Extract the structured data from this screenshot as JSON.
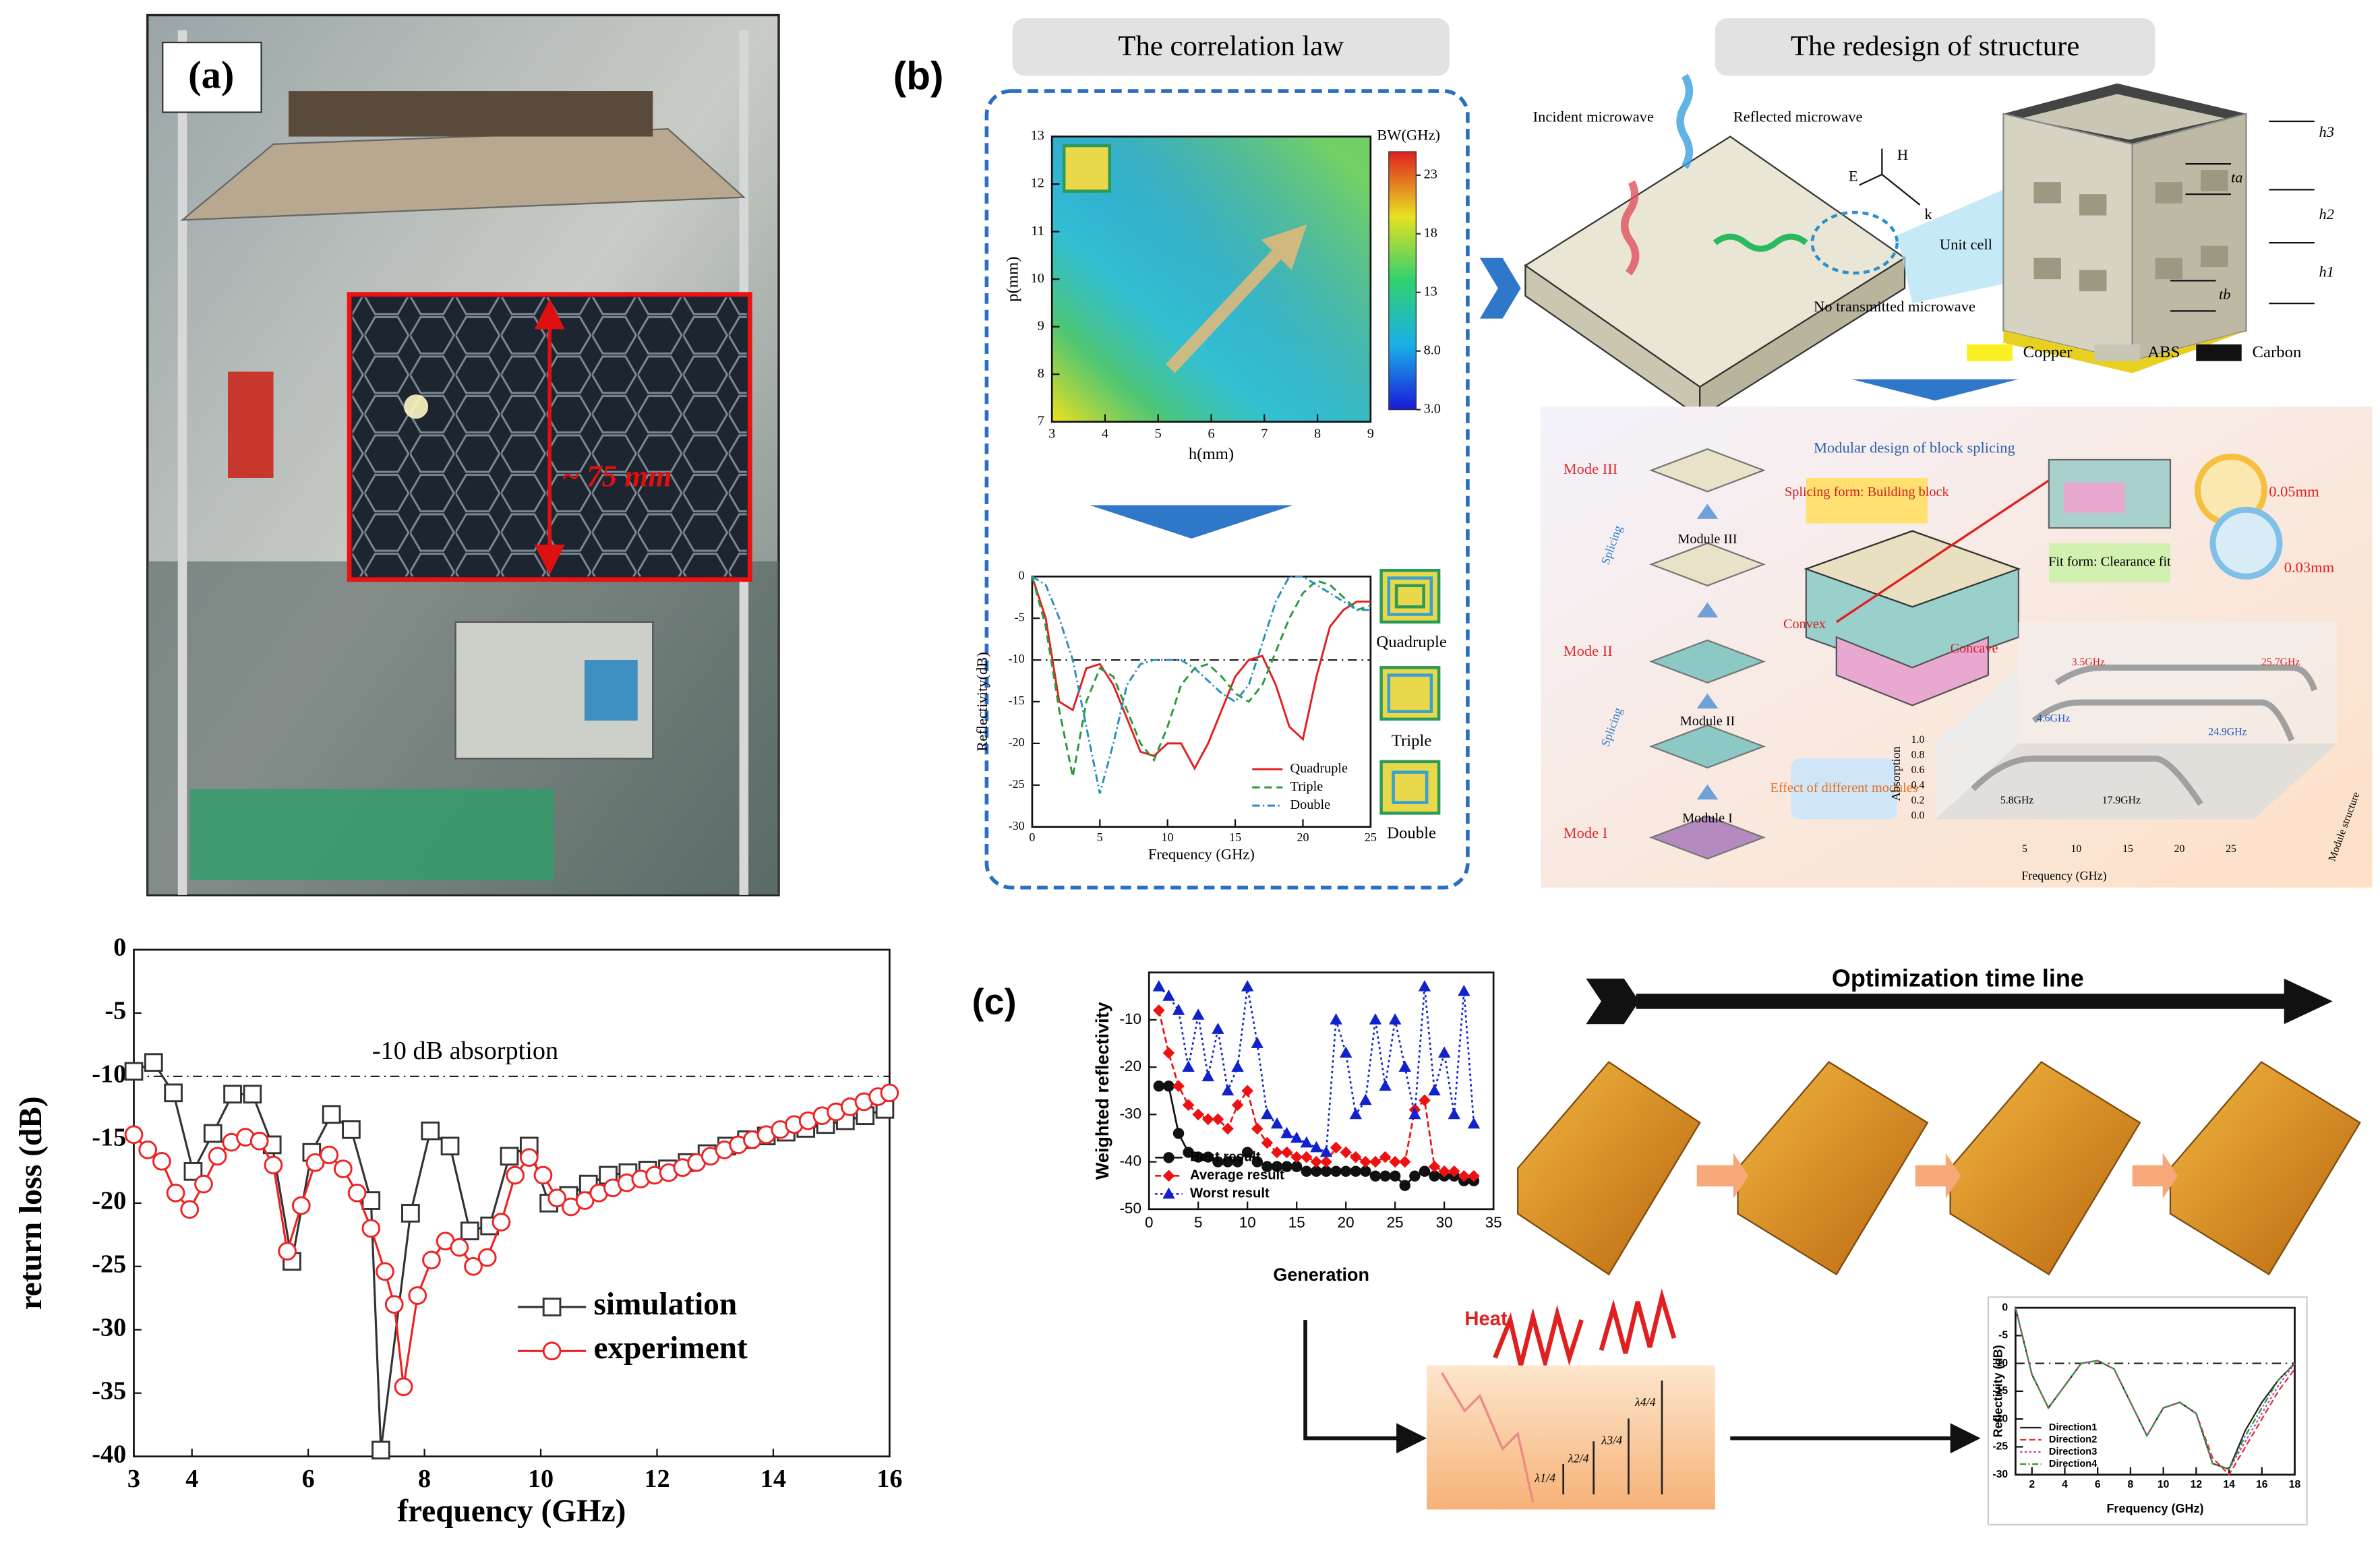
{
  "labels": {
    "a": "(a)",
    "b": "(b)",
    "c": "(c)",
    "size": "~ 75 mm"
  },
  "panel_b": {
    "header_left": "The correlation law",
    "header_right": "The redesign of structure",
    "incident": "Incident microwave",
    "reflected": "Reflected microwave",
    "transmitted": "No transmitted microwave",
    "unit_cell": "Unit cell",
    "axes": [
      "H",
      "E",
      "k"
    ],
    "dims": [
      "h3",
      "ta",
      "h2",
      "h1",
      "tb"
    ],
    "materials": [
      "Copper",
      "ABS",
      "Carbon"
    ],
    "modular": {
      "title": "Modular design of block splicing",
      "modes": [
        "Mode III",
        "Mode II",
        "Mode I"
      ],
      "modules": [
        "Module III",
        "Module II",
        "Module I"
      ],
      "splicing": [
        "Splicing",
        "Splicing"
      ],
      "splicing_form": "Splicing form: Building block",
      "fit_form": "Fit form: Clearance fit",
      "gaps": [
        "0.05mm",
        "0.03mm"
      ],
      "convex": "Convex",
      "concave": "Concave",
      "effect": "Effect of different modules",
      "bands": [
        "3.5GHz",
        "25.7GHz",
        "4.6GHz",
        "24.9GHz",
        "5.8GHz",
        "17.9GHz"
      ],
      "plot_ylabel": "Absorption",
      "plot_xlabel": "Frequency (GHz)",
      "plot_zlabel": "Module structure",
      "plot_xticks": [
        5,
        10,
        15,
        20,
        25
      ],
      "plot_yticks": [
        {
          "value": 0,
          "label": "0.0"
        },
        {
          "value": 0.2,
          "label": "0.2"
        },
        {
          "value": 0.4,
          "label": "0.4"
        },
        {
          "value": 0.6,
          "label": "0.6"
        },
        {
          "value": 0.8,
          "label": "0.8"
        },
        {
          "value": 1,
          "label": "1.0"
        }
      ]
    }
  },
  "panel_c": {
    "timeline": "Optimization time line",
    "heat": "Heat",
    "lambda": [
      "λ1/4",
      "λ2/4",
      "λ3/4",
      "λ4/4"
    ]
  },
  "chart_data": [
    {
      "type": "line",
      "xlabel": "frequency (GHz)",
      "ylabel": "return loss (dB)",
      "annotation": "-10 dB absorption",
      "reference_line": -10,
      "xlim": [
        3,
        16
      ],
      "ylim": [
        -40,
        0
      ],
      "xticks": [
        3,
        4,
        6,
        8,
        10,
        12,
        14,
        16
      ],
      "yticks": [
        0,
        -5,
        -10,
        -15,
        -20,
        -25,
        -30,
        -35,
        -40
      ],
      "legend": "lower right",
      "grid": false,
      "series": [
        {
          "name": "simulation",
          "color": "#333333",
          "marker": "square",
          "marker_filled": false,
          "x": [
            3.0,
            3.34,
            3.68,
            4.02,
            4.36,
            4.7,
            5.04,
            5.38,
            5.72,
            6.06,
            6.4,
            6.74,
            7.08,
            7.25,
            7.76,
            8.1,
            8.44,
            8.78,
            9.12,
            9.46,
            9.8,
            10.14,
            10.48,
            10.82,
            11.16,
            11.5,
            11.84,
            12.18,
            12.52,
            12.86,
            13.2,
            13.54,
            13.88,
            14.22,
            14.56,
            14.9,
            15.24,
            15.58,
            15.92
          ],
          "values": [
            -9.6,
            -8.9,
            -11.3,
            -17.5,
            -14.5,
            -11.4,
            -11.4,
            -15.4,
            -24.6,
            -16,
            -13,
            -14.2,
            -19.8,
            -39.5,
            -20.8,
            -14.3,
            -15.5,
            -22.2,
            -21.8,
            -16.3,
            -15.5,
            -20,
            -19.4,
            -18.5,
            -17.8,
            -17.6,
            -17.4,
            -17.3,
            -16.8,
            -16.1,
            -15.5,
            -15,
            -14.7,
            -14.4,
            -14.1,
            -13.8,
            -13.5,
            -13.1,
            -12.6
          ]
        },
        {
          "name": "experiment",
          "color": "#ee2222",
          "marker": "circle",
          "marker_filled": false,
          "x": [
            3.0,
            3.24,
            3.48,
            3.72,
            3.96,
            4.2,
            4.44,
            4.68,
            4.92,
            5.16,
            5.4,
            5.64,
            5.88,
            6.12,
            6.36,
            6.6,
            6.84,
            7.08,
            7.32,
            7.48,
            7.64,
            7.88,
            8.12,
            8.36,
            8.6,
            8.84,
            9.08,
            9.32,
            9.56,
            9.8,
            10.04,
            10.28,
            10.52,
            10.76,
            11.0,
            11.24,
            11.48,
            11.72,
            11.96,
            12.2,
            12.44,
            12.68,
            12.92,
            13.16,
            13.4,
            13.64,
            13.88,
            14.12,
            14.36,
            14.6,
            14.84,
            15.08,
            15.32,
            15.56,
            15.8,
            16.0
          ],
          "values": [
            -14.6,
            -15.8,
            -16.7,
            -19.2,
            -20.5,
            -18.5,
            -16.3,
            -15.2,
            -14.8,
            -15.1,
            -17,
            -23.8,
            -20.2,
            -16.8,
            -16.2,
            -17.3,
            -19.2,
            -22,
            -25.4,
            -28,
            -34.5,
            -27.3,
            -24.5,
            -23,
            -23.5,
            -25,
            -24.3,
            -21.5,
            -17.8,
            -16.4,
            -17.8,
            -19.6,
            -20.3,
            -19.8,
            -19.2,
            -18.8,
            -18.4,
            -18.1,
            -17.8,
            -17.6,
            -17.2,
            -16.8,
            -16.3,
            -15.8,
            -15.4,
            -15,
            -14.6,
            -14.2,
            -13.8,
            -13.5,
            -13.1,
            -12.8,
            -12.4,
            -12,
            -11.6,
            -11.3
          ]
        }
      ]
    },
    {
      "type": "line",
      "xlabel": "Generation",
      "ylabel": "Weighted reflectivity",
      "xlim": [
        0,
        35
      ],
      "ylim": [
        -50,
        0
      ],
      "xticks": [
        0,
        5,
        10,
        15,
        20,
        25,
        30,
        35
      ],
      "yticks": [
        -10,
        -20,
        -30,
        -40,
        -50
      ],
      "legend": "lower left",
      "grid": false,
      "x": [
        1,
        2,
        3,
        4,
        5,
        6,
        7,
        8,
        9,
        10,
        11,
        12,
        13,
        14,
        15,
        16,
        17,
        18,
        19,
        20,
        21,
        22,
        23,
        24,
        25,
        26,
        27,
        28,
        29,
        30,
        31,
        32,
        33
      ],
      "series": [
        {
          "name": "Best result",
          "color": "#111111",
          "marker": "circle",
          "marker_filled": true,
          "dash": "none",
          "values": [
            -24,
            -24,
            -34,
            -38,
            -39,
            -39,
            -40,
            -40,
            -40,
            -38,
            -40,
            -41,
            -41,
            -41,
            -41,
            -42,
            -42,
            -42,
            -42,
            -42,
            -42,
            -42,
            -43,
            -43,
            -43,
            -45,
            -43,
            -42,
            -43,
            -43,
            -43,
            -44,
            -44
          ]
        },
        {
          "name": "Average result",
          "color": "#ee1111",
          "marker": "diamond",
          "marker_filled": true,
          "dash": "4 2",
          "values": [
            -8,
            -17,
            -24,
            -28,
            -30,
            -31,
            -31,
            -33,
            -28,
            -25,
            -33,
            -36,
            -38,
            -38,
            -39,
            -39,
            -40,
            -40,
            -37,
            -38,
            -39,
            -40,
            -40,
            -39,
            -40,
            -40,
            -29,
            -27,
            -41,
            -42,
            -42,
            -43,
            -43
          ]
        },
        {
          "name": "Worst result",
          "color": "#1122cc",
          "marker": "triangle",
          "marker_filled": true,
          "dash": "1.5 2",
          "values": [
            -3,
            -5,
            -8,
            -20,
            -9,
            -22,
            -12,
            -25,
            -20,
            -3,
            -15,
            -30,
            -32,
            -34,
            -35,
            -36,
            -37,
            -38,
            -10,
            -17,
            -30,
            -27,
            -10,
            -24,
            -10,
            -20,
            -30,
            -3,
            -25,
            -17,
            -30,
            -4,
            -32
          ]
        }
      ]
    },
    {
      "type": "line",
      "xlabel": "Frequency (GHz)",
      "ylabel": "Reflectivity(dB)",
      "reference_line": -10,
      "xlim": [
        0,
        25
      ],
      "ylim": [
        -30,
        0
      ],
      "xticks": [
        0,
        5,
        10,
        15,
        20,
        25
      ],
      "yticks": [
        0,
        -5,
        -10,
        -15,
        -20,
        -25,
        -30
      ],
      "legend": "lower right",
      "grid": false,
      "x": [
        0,
        1,
        2,
        3,
        4,
        5,
        6,
        7,
        8,
        9,
        10,
        11,
        12,
        13,
        14,
        15,
        16,
        17,
        18,
        19,
        20,
        21,
        22,
        23,
        24,
        25
      ],
      "series": [
        {
          "name": "Quadruple",
          "color": "#e02020",
          "marker": "none",
          "dash": "none",
          "values": [
            0,
            -5,
            -15,
            -16,
            -11,
            -10.5,
            -13,
            -17,
            -21,
            -21.5,
            -20,
            -20,
            -23,
            -20,
            -16,
            -12,
            -10,
            -9.5,
            -13,
            -18,
            -19.5,
            -12,
            -6,
            -4,
            -3,
            -3
          ]
        },
        {
          "name": "Triple",
          "color": "#2a9a3a",
          "marker": "none",
          "dash": "5 3",
          "values": [
            0,
            -6,
            -16,
            -24,
            -15,
            -11,
            -12,
            -16,
            -20,
            -22,
            -18,
            -13,
            -11,
            -10.5,
            -12,
            -14,
            -15,
            -13,
            -9,
            -5,
            -2,
            -0.5,
            -1,
            -2.5,
            -4,
            -3.5
          ]
        },
        {
          "name": "Double",
          "color": "#2a8fb8",
          "marker": "none",
          "dash": "5 2 1 2",
          "values": [
            0,
            -1,
            -5,
            -10,
            -18,
            -26,
            -20,
            -13,
            -10.5,
            -10,
            -10,
            -10,
            -11,
            -12.5,
            -14,
            -15,
            -13,
            -8,
            -3,
            0,
            0,
            -1,
            -2,
            -3,
            -4,
            -4
          ]
        }
      ]
    },
    {
      "type": "heatmap",
      "xlabel": "h(mm)",
      "ylabel": "p(mm)",
      "colorbar_title": "BW(GHz)",
      "xlim": [
        3,
        9
      ],
      "ylim": [
        7,
        13
      ],
      "xticks": [
        3,
        4,
        5,
        6,
        7,
        8,
        9
      ],
      "yticks": [
        7,
        8,
        9,
        10,
        11,
        12,
        13
      ],
      "clim": [
        3,
        25
      ],
      "cticks": [
        {
          "value": 3,
          "label": "3.0"
        },
        {
          "value": 8,
          "label": "8.0"
        },
        13,
        18,
        23
      ]
    },
    {
      "type": "line",
      "xlabel": "Frequency (GHz)",
      "ylabel": "Reflectivity (dB)",
      "reference_line": -10,
      "xlim": [
        1,
        18
      ],
      "ylim": [
        -30,
        0
      ],
      "xticks": [
        2,
        4,
        6,
        8,
        10,
        12,
        14,
        16,
        18
      ],
      "yticks": [
        0,
        -5,
        -10,
        -15,
        -20,
        -25,
        -30
      ],
      "legend": "lower left",
      "grid": false,
      "x": [
        1,
        2,
        3,
        4,
        5,
        6,
        7,
        8,
        9,
        10,
        11,
        12,
        13,
        14,
        15,
        16,
        17,
        18
      ],
      "series": [
        {
          "name": "Direction1",
          "color": "#222222",
          "marker": "none",
          "dash": "none",
          "values": [
            0,
            -12,
            -18,
            -14,
            -10,
            -9.5,
            -11,
            -17,
            -23,
            -18,
            -17,
            -19,
            -28,
            -29,
            -22,
            -17,
            -13,
            -10
          ]
        },
        {
          "name": "Direction2",
          "color": "#e03030",
          "marker": "none",
          "dash": "4 2",
          "values": [
            0,
            -12,
            -18,
            -14,
            -10,
            -9.5,
            -11,
            -17,
            -23,
            -18,
            -17,
            -19,
            -27,
            -30,
            -25,
            -20,
            -15,
            -11
          ]
        },
        {
          "name": "Direction3",
          "color": "#c040c0",
          "marker": "none",
          "dash": "1.5 1.5",
          "values": [
            0,
            -12,
            -18,
            -14,
            -10,
            -9.5,
            -11,
            -17,
            -23,
            -18,
            -17,
            -19,
            -28,
            -29,
            -24,
            -19,
            -14,
            -10
          ]
        },
        {
          "name": "Direction4",
          "color": "#2a9a3a",
          "marker": "none",
          "dash": "4 1.5 1 1.5",
          "values": [
            0,
            -12,
            -18,
            -14,
            -10,
            -9.5,
            -11,
            -17,
            -23,
            -18,
            -17,
            -19,
            -28,
            -29,
            -23,
            -18,
            -13,
            -10
          ]
        }
      ]
    }
  ]
}
